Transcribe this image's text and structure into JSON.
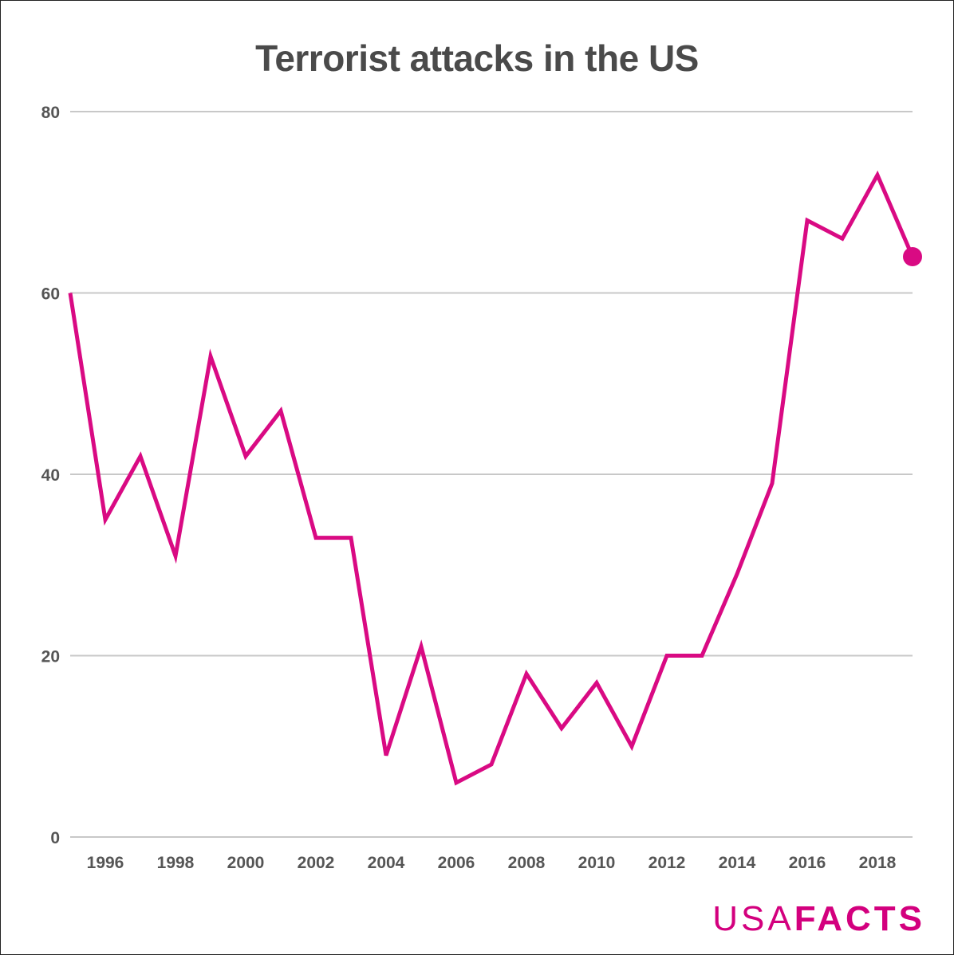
{
  "chart_data": {
    "type": "line",
    "title": "Terrorist attacks in the US",
    "xlabel": "",
    "ylabel": "",
    "x": [
      1995,
      1996,
      1997,
      1998,
      1999,
      2000,
      2001,
      2002,
      2003,
      2004,
      2005,
      2006,
      2007,
      2008,
      2009,
      2010,
      2011,
      2012,
      2013,
      2014,
      2015,
      2016,
      2017,
      2018,
      2019
    ],
    "series": [
      {
        "name": "Terrorist attacks",
        "values": [
          60,
          35,
          42,
          31,
          53,
          42,
          47,
          33,
          33,
          9,
          21,
          6,
          8,
          18,
          12,
          17,
          10,
          20,
          20,
          29,
          39,
          68,
          66,
          73,
          64
        ]
      }
    ],
    "xticks": [
      1996,
      1998,
      2000,
      2002,
      2004,
      2006,
      2008,
      2010,
      2012,
      2014,
      2016,
      2018
    ],
    "yticks": [
      0,
      20,
      40,
      60,
      80
    ],
    "xlim": [
      1995,
      2019
    ],
    "ylim": [
      0,
      80
    ],
    "grid": true,
    "line_color": "#d90a83",
    "grid_color": "#c8c8c8"
  },
  "branding": {
    "logo_light": "USA",
    "logo_bold": "FACTS",
    "color": "#d3007e"
  }
}
